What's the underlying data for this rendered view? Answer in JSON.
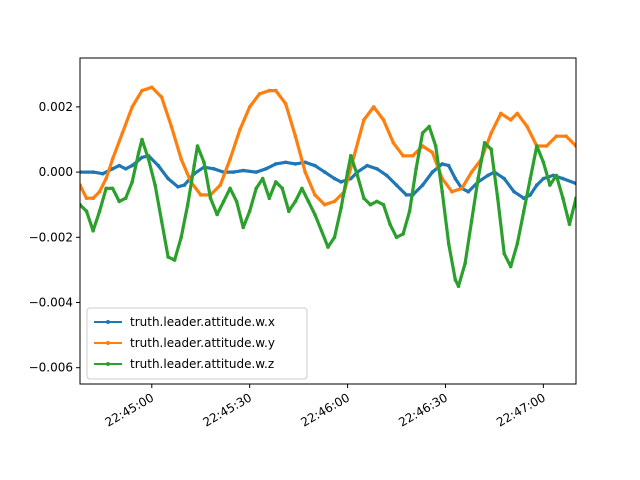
{
  "chart_data": {
    "type": "line",
    "title": "",
    "xlabel": "",
    "ylabel": "",
    "xlim": [
      "22:44:38",
      "22:47:10"
    ],
    "ylim": [
      -0.0065,
      0.0035
    ],
    "grid": false,
    "legend_position": "lower-left",
    "x_ticks": [
      {
        "value": "22:45:00",
        "label": "22:45:00"
      },
      {
        "value": "22:45:30",
        "label": "22:45:30"
      },
      {
        "value": "22:46:00",
        "label": "22:46:00"
      },
      {
        "value": "22:46:30",
        "label": "22:46:30"
      },
      {
        "value": "22:47:00",
        "label": "22:47:00"
      }
    ],
    "y_ticks": [
      {
        "value": 0.002,
        "label": "0.002"
      },
      {
        "value": 0.0,
        "label": "0.000"
      },
      {
        "value": -0.002,
        "label": "−0.002"
      },
      {
        "value": -0.004,
        "label": "−0.004"
      },
      {
        "value": -0.006,
        "label": "−0.006"
      }
    ],
    "series": [
      {
        "name": "truth.leader.attitude.w.x",
        "color": "#1f77b4",
        "points": [
          [
            "22:44:38",
            0.0
          ],
          [
            "22:44:42",
            0.0
          ],
          [
            "22:44:45",
            -5e-05
          ],
          [
            "22:44:48",
            0.0001
          ],
          [
            "22:44:50",
            0.0002
          ],
          [
            "22:44:52",
            0.0001
          ],
          [
            "22:44:54",
            0.0002
          ],
          [
            "22:44:57",
            0.00045
          ],
          [
            "22:44:59",
            0.0005
          ],
          [
            "22:45:02",
            0.0002
          ],
          [
            "22:45:05",
            -0.0002
          ],
          [
            "22:45:08",
            -0.00045
          ],
          [
            "22:45:10",
            -0.0004
          ],
          [
            "22:45:13",
            -5e-05
          ],
          [
            "22:45:16",
            0.00015
          ],
          [
            "22:45:19",
            0.0001
          ],
          [
            "22:45:22",
            0.0
          ],
          [
            "22:45:25",
            0.0
          ],
          [
            "22:45:28",
            5e-05
          ],
          [
            "22:45:32",
            0.0
          ],
          [
            "22:45:35",
            0.0001
          ],
          [
            "22:45:38",
            0.00025
          ],
          [
            "22:45:41",
            0.0003
          ],
          [
            "22:45:44",
            0.00025
          ],
          [
            "22:45:47",
            0.0003
          ],
          [
            "22:45:50",
            0.0002
          ],
          [
            "22:45:53",
            0.0
          ],
          [
            "22:45:56",
            -0.0002
          ],
          [
            "22:45:58",
            -0.0003
          ],
          [
            "22:46:01",
            -0.0002
          ],
          [
            "22:46:03",
            0.0
          ],
          [
            "22:46:06",
            0.0002
          ],
          [
            "22:46:09",
            0.0001
          ],
          [
            "22:46:12",
            -0.0001
          ],
          [
            "22:46:15",
            -0.0004
          ],
          [
            "22:46:18",
            -0.0007
          ],
          [
            "22:46:20",
            -0.0007
          ],
          [
            "22:46:23",
            -0.0004
          ],
          [
            "22:46:26",
            0.0
          ],
          [
            "22:46:29",
            0.00025
          ],
          [
            "22:46:31",
            0.0002
          ],
          [
            "22:46:33",
            -0.0002
          ],
          [
            "22:46:35",
            -0.0005
          ],
          [
            "22:46:37",
            -0.0006
          ],
          [
            "22:46:40",
            -0.0003
          ],
          [
            "22:46:43",
            -0.0001
          ],
          [
            "22:46:45",
            0.0
          ],
          [
            "22:46:48",
            -0.0002
          ],
          [
            "22:46:51",
            -0.0006
          ],
          [
            "22:46:54",
            -0.0008
          ],
          [
            "22:46:56",
            -0.0007
          ],
          [
            "22:46:58",
            -0.0004
          ],
          [
            "22:47:00",
            -0.0002
          ],
          [
            "22:47:03",
            -0.0001
          ],
          [
            "22:47:06",
            -0.0002
          ],
          [
            "22:47:10",
            -0.00035
          ]
        ]
      },
      {
        "name": "truth.leader.attitude.w.y",
        "color": "#ff7f0e",
        "points": [
          [
            "22:44:38",
            -0.0004
          ],
          [
            "22:44:40",
            -0.0008
          ],
          [
            "22:44:42",
            -0.0008
          ],
          [
            "22:44:44",
            -0.0006
          ],
          [
            "22:44:46",
            -0.0002
          ],
          [
            "22:44:48",
            0.0004
          ],
          [
            "22:44:51",
            0.0012
          ],
          [
            "22:44:54",
            0.002
          ],
          [
            "22:44:57",
            0.0025
          ],
          [
            "22:45:00",
            0.0026
          ],
          [
            "22:45:03",
            0.0023
          ],
          [
            "22:45:06",
            0.0014
          ],
          [
            "22:45:09",
            0.0004
          ],
          [
            "22:45:12",
            -0.0003
          ],
          [
            "22:45:15",
            -0.0007
          ],
          [
            "22:45:18",
            -0.0007
          ],
          [
            "22:45:21",
            -0.0004
          ],
          [
            "22:45:24",
            0.0004
          ],
          [
            "22:45:27",
            0.0013
          ],
          [
            "22:45:30",
            0.002
          ],
          [
            "22:45:33",
            0.0024
          ],
          [
            "22:45:36",
            0.0025
          ],
          [
            "22:45:38",
            0.0025
          ],
          [
            "22:45:41",
            0.0021
          ],
          [
            "22:45:44",
            0.0011
          ],
          [
            "22:45:47",
            0.0
          ],
          [
            "22:45:50",
            -0.0007
          ],
          [
            "22:45:53",
            -0.001
          ],
          [
            "22:45:56",
            -0.0009
          ],
          [
            "22:45:59",
            -0.0006
          ],
          [
            "22:46:02",
            0.0005
          ],
          [
            "22:46:05",
            0.0016
          ],
          [
            "22:46:08",
            0.002
          ],
          [
            "22:46:11",
            0.0016
          ],
          [
            "22:46:14",
            0.0009
          ],
          [
            "22:46:17",
            0.0005
          ],
          [
            "22:46:20",
            0.0005
          ],
          [
            "22:46:23",
            0.0008
          ],
          [
            "22:46:26",
            0.0006
          ],
          [
            "22:46:29",
            -0.0002
          ],
          [
            "22:46:32",
            -0.0006
          ],
          [
            "22:46:35",
            -0.0005
          ],
          [
            "22:46:38",
            0.0
          ],
          [
            "22:46:41",
            0.0004
          ],
          [
            "22:46:44",
            0.0012
          ],
          [
            "22:46:47",
            0.0018
          ],
          [
            "22:46:50",
            0.0016
          ],
          [
            "22:46:52",
            0.0018
          ],
          [
            "22:46:55",
            0.0014
          ],
          [
            "22:46:58",
            0.0008
          ],
          [
            "22:47:01",
            0.0008
          ],
          [
            "22:47:04",
            0.0011
          ],
          [
            "22:47:07",
            0.0011
          ],
          [
            "22:47:10",
            0.0008
          ]
        ]
      },
      {
        "name": "truth.leader.attitude.w.z",
        "color": "#2ca02c",
        "points": [
          [
            "22:44:38",
            -0.001
          ],
          [
            "22:44:40",
            -0.0012
          ],
          [
            "22:44:42",
            -0.0018
          ],
          [
            "22:44:44",
            -0.0012
          ],
          [
            "22:44:46",
            -0.0005
          ],
          [
            "22:44:48",
            -0.0005
          ],
          [
            "22:44:50",
            -0.0009
          ],
          [
            "22:44:52",
            -0.0008
          ],
          [
            "22:44:54",
            -0.0003
          ],
          [
            "22:44:56",
            0.0006
          ],
          [
            "22:44:57",
            0.001
          ],
          [
            "22:44:59",
            0.0004
          ],
          [
            "22:45:01",
            -0.0004
          ],
          [
            "22:45:03",
            -0.0015
          ],
          [
            "22:45:05",
            -0.0026
          ],
          [
            "22:45:07",
            -0.0027
          ],
          [
            "22:45:09",
            -0.002
          ],
          [
            "22:45:11",
            -0.001
          ],
          [
            "22:45:13",
            0.0002
          ],
          [
            "22:45:14",
            0.0008
          ],
          [
            "22:45:16",
            0.0003
          ],
          [
            "22:45:18",
            -0.0008
          ],
          [
            "22:45:20",
            -0.0013
          ],
          [
            "22:45:22",
            -0.0009
          ],
          [
            "22:45:24",
            -0.0005
          ],
          [
            "22:45:26",
            -0.0009
          ],
          [
            "22:45:28",
            -0.0017
          ],
          [
            "22:45:30",
            -0.0012
          ],
          [
            "22:45:32",
            -0.0005
          ],
          [
            "22:45:34",
            -0.0002
          ],
          [
            "22:45:36",
            -0.0008
          ],
          [
            "22:45:38",
            -0.0003
          ],
          [
            "22:45:40",
            -0.0005
          ],
          [
            "22:45:42",
            -0.0012
          ],
          [
            "22:45:44",
            -0.0009
          ],
          [
            "22:45:46",
            -0.0005
          ],
          [
            "22:45:48",
            -0.0009
          ],
          [
            "22:45:50",
            -0.0013
          ],
          [
            "22:45:52",
            -0.0018
          ],
          [
            "22:45:54",
            -0.0023
          ],
          [
            "22:45:56",
            -0.002
          ],
          [
            "22:45:58",
            -0.0011
          ],
          [
            "22:46:00",
            0.0
          ],
          [
            "22:46:01",
            0.0005
          ],
          [
            "22:46:03",
            -0.0001
          ],
          [
            "22:46:05",
            -0.0008
          ],
          [
            "22:46:07",
            -0.001
          ],
          [
            "22:46:09",
            -0.0009
          ],
          [
            "22:46:11",
            -0.001
          ],
          [
            "22:46:13",
            -0.0016
          ],
          [
            "22:46:15",
            -0.002
          ],
          [
            "22:46:17",
            -0.0019
          ],
          [
            "22:46:19",
            -0.0012
          ],
          [
            "22:46:21",
            0.0001
          ],
          [
            "22:46:23",
            0.0012
          ],
          [
            "22:46:25",
            0.0014
          ],
          [
            "22:46:27",
            0.0008
          ],
          [
            "22:46:29",
            -0.0006
          ],
          [
            "22:46:31",
            -0.0022
          ],
          [
            "22:46:33",
            -0.0033
          ],
          [
            "22:46:34",
            -0.0035
          ],
          [
            "22:46:36",
            -0.0028
          ],
          [
            "22:46:38",
            -0.0015
          ],
          [
            "22:46:40",
            -0.0002
          ],
          [
            "22:46:42",
            0.0009
          ],
          [
            "22:46:44",
            0.0007
          ],
          [
            "22:46:46",
            -0.0008
          ],
          [
            "22:46:48",
            -0.0025
          ],
          [
            "22:46:50",
            -0.0029
          ],
          [
            "22:46:52",
            -0.0022
          ],
          [
            "22:46:54",
            -0.0012
          ],
          [
            "22:46:56",
            -0.0002
          ],
          [
            "22:46:58",
            0.0008
          ],
          [
            "22:47:00",
            0.0003
          ],
          [
            "22:47:02",
            -0.0004
          ],
          [
            "22:47:04",
            -0.0001
          ],
          [
            "22:47:06",
            -0.0008
          ],
          [
            "22:47:08",
            -0.0016
          ],
          [
            "22:47:10",
            -0.0008
          ]
        ]
      }
    ]
  }
}
